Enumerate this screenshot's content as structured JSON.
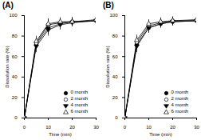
{
  "chart_data": [
    {
      "type": "line",
      "title": "(A)",
      "xlabel": "Time (min)",
      "ylabel": "Dissolution rate (%)",
      "x": [
        0,
        5,
        10,
        15,
        20,
        30
      ],
      "xlim": [
        0,
        30
      ],
      "xticks": [
        0,
        10,
        20,
        30
      ],
      "ylim": [
        0,
        100
      ],
      "yticks": [
        0,
        20,
        40,
        60,
        80,
        100
      ],
      "legend": "lower right",
      "series": [
        {
          "name": "0 month",
          "color": "#000000",
          "marker": "circle",
          "values": [
            0,
            72,
            88,
            92,
            94,
            95
          ],
          "errors": [
            0,
            5,
            6,
            4,
            4,
            3
          ]
        },
        {
          "name": "2 month",
          "color": "#000000",
          "marker": "circle-open",
          "values": [
            0,
            73,
            91,
            93,
            94,
            95
          ],
          "errors": [
            0,
            5,
            5,
            4,
            4,
            3
          ]
        },
        {
          "name": "4 month",
          "color": "#000000",
          "marker": "triangle-down",
          "values": [
            0,
            70,
            86,
            91,
            93,
            95
          ],
          "errors": [
            0,
            6,
            6,
            5,
            4,
            3
          ]
        },
        {
          "name": "6 month",
          "color": "#000000",
          "marker": "triangle-open",
          "values": [
            0,
            75,
            92,
            94,
            94,
            96
          ],
          "errors": [
            0,
            5,
            5,
            4,
            4,
            3
          ]
        }
      ]
    },
    {
      "type": "line",
      "title": "(B)",
      "xlabel": "Time (min)",
      "ylabel": "Dissolution rate (%)",
      "x": [
        0,
        5,
        10,
        15,
        20,
        30
      ],
      "xlim": [
        0,
        30
      ],
      "xticks": [
        0,
        10,
        20,
        30
      ],
      "ylim": [
        0,
        100
      ],
      "yticks": [
        0,
        20,
        40,
        60,
        80,
        100
      ],
      "legend": "lower right",
      "series": [
        {
          "name": "0 month",
          "color": "#000000",
          "marker": "circle",
          "values": [
            0,
            72,
            88,
            92,
            94,
            95
          ],
          "errors": [
            0,
            5,
            5,
            4,
            4,
            3
          ]
        },
        {
          "name": "2 month",
          "color": "#000000",
          "marker": "circle-open",
          "values": [
            0,
            74,
            90,
            93,
            95,
            95
          ],
          "errors": [
            0,
            5,
            5,
            4,
            4,
            3
          ]
        },
        {
          "name": "4 month",
          "color": "#000000",
          "marker": "triangle-down",
          "values": [
            0,
            70,
            88,
            92,
            94,
            95
          ],
          "errors": [
            0,
            6,
            5,
            4,
            4,
            3
          ]
        },
        {
          "name": "6 month",
          "color": "#000000",
          "marker": "triangle-open",
          "values": [
            0,
            76,
            92,
            94,
            95,
            96
          ],
          "errors": [
            0,
            5,
            4,
            4,
            3,
            3
          ]
        }
      ]
    }
  ]
}
